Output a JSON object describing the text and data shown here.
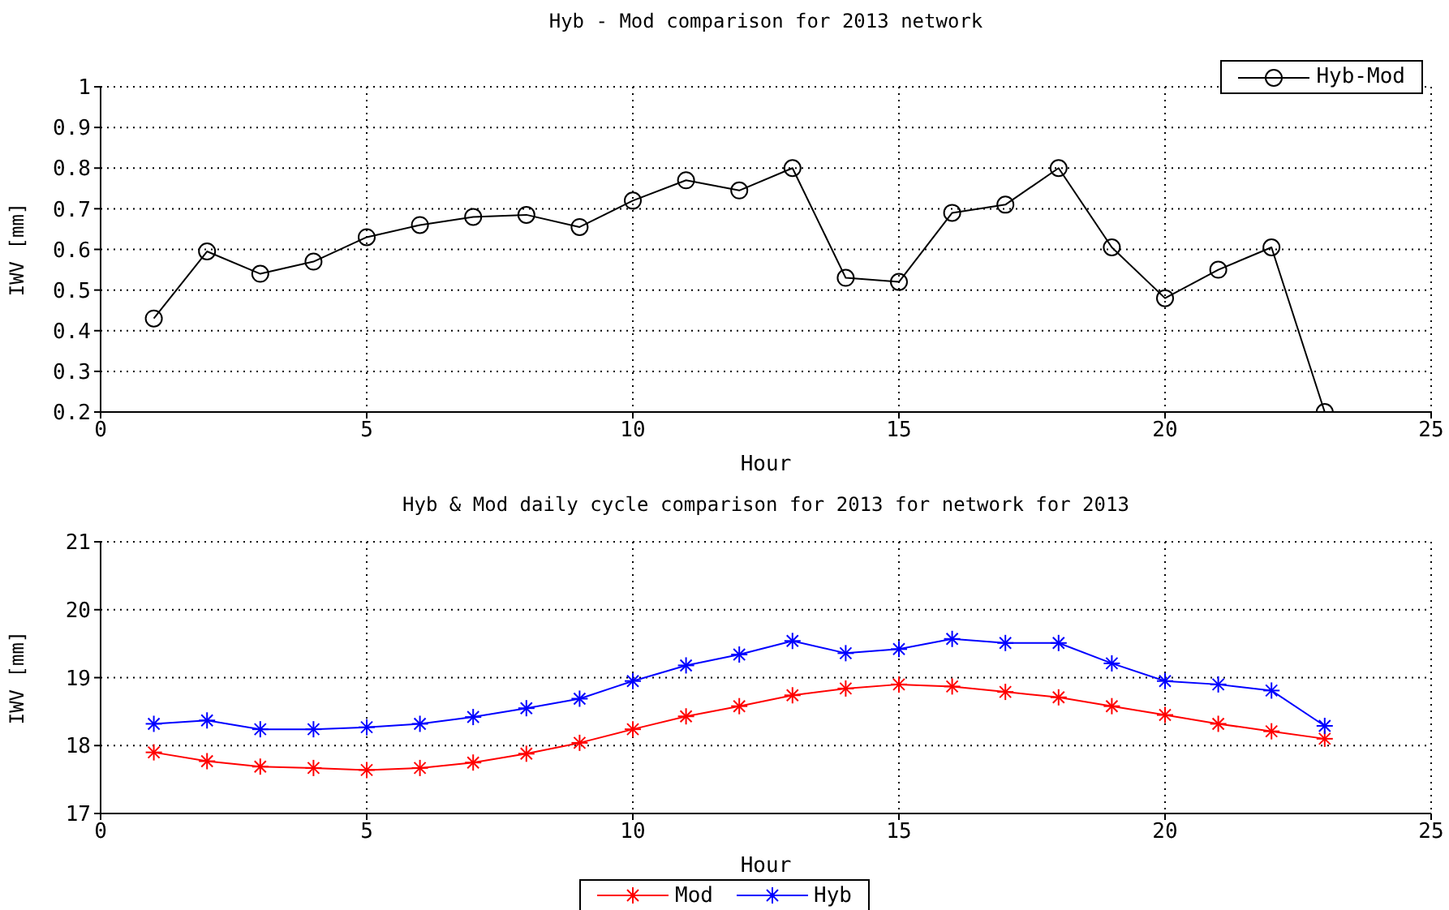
{
  "chart_data": [
    {
      "type": "line",
      "title": "Hyb - Mod comparison for 2013 network",
      "xlabel": "Hour",
      "ylabel": "IWV [mm]",
      "x": [
        1,
        2,
        3,
        4,
        5,
        6,
        7,
        8,
        9,
        10,
        11,
        12,
        13,
        14,
        15,
        16,
        17,
        18,
        19,
        20,
        21,
        22,
        23
      ],
      "series": [
        {
          "name": "Hyb-Mod",
          "color": "#000000",
          "values": [
            0.43,
            0.595,
            0.54,
            0.57,
            0.63,
            0.66,
            0.68,
            0.685,
            0.655,
            0.72,
            0.77,
            0.745,
            0.8,
            0.53,
            0.52,
            0.69,
            0.71,
            0.8,
            0.605,
            0.48,
            0.55,
            0.605,
            0.2
          ]
        }
      ],
      "xlim": [
        0,
        25
      ],
      "xticks": [
        0,
        5,
        10,
        15,
        20,
        25
      ],
      "ylim": [
        0.2,
        1
      ],
      "yticks": [
        0.2,
        0.3,
        0.4,
        0.5,
        0.6,
        0.7,
        0.8,
        0.9,
        1
      ],
      "grid": true,
      "legend": "top right",
      "marker": "circle",
      "line_style": "solid"
    },
    {
      "type": "line",
      "title": "Hyb & Mod daily cycle comparison for 2013 for network for 2013",
      "xlabel": "Hour",
      "ylabel": "IWV [mm]",
      "x": [
        1,
        2,
        3,
        4,
        5,
        6,
        7,
        8,
        9,
        10,
        11,
        12,
        13,
        14,
        15,
        16,
        17,
        18,
        19,
        20,
        21,
        22,
        23
      ],
      "series": [
        {
          "name": "Mod",
          "color": "#ff0000",
          "values": [
            17.9,
            17.77,
            17.69,
            17.67,
            17.64,
            17.67,
            17.75,
            17.88,
            18.04,
            18.24,
            18.43,
            18.58,
            18.74,
            18.84,
            18.9,
            18.87,
            18.79,
            18.71,
            18.58,
            18.45,
            18.32,
            18.21,
            18.1
          ]
        },
        {
          "name": "Hyb",
          "color": "#0000ff",
          "values": [
            18.32,
            18.37,
            18.24,
            18.24,
            18.27,
            18.32,
            18.42,
            18.55,
            18.69,
            18.95,
            19.18,
            19.34,
            19.54,
            19.36,
            19.42,
            19.57,
            19.51,
            19.51,
            19.21,
            18.95,
            18.9,
            18.81,
            18.29
          ]
        }
      ],
      "xlim": [
        0,
        25
      ],
      "xticks": [
        0,
        5,
        10,
        15,
        20,
        25
      ],
      "ylim": [
        17,
        21
      ],
      "yticks": [
        17,
        18,
        19,
        20,
        21
      ],
      "grid": true,
      "legend": "bottom",
      "marker": "cross",
      "line_style": "solid"
    }
  ]
}
